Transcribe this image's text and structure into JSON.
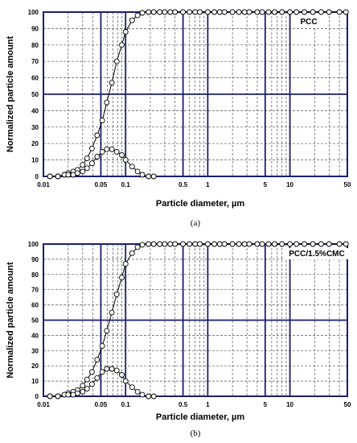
{
  "chart_data": [
    {
      "type": "line",
      "scale_x": "log",
      "xlim": [
        0.01,
        50
      ],
      "ylim": [
        0,
        100
      ],
      "x_ticks": [
        "0.01",
        "0.05",
        "0.1",
        "0.5",
        "1",
        "5",
        "10",
        "50"
      ],
      "y_ticks": [
        "0",
        "10",
        "20",
        "30",
        "40",
        "50",
        "60",
        "70",
        "80",
        "90",
        "100"
      ],
      "xlabel": "Particle diameter, µm",
      "ylabel": "Normalized particle amount",
      "sample_label": "PCC",
      "caption": "(a)",
      "grid": true,
      "series": [
        {
          "x": [
            0.012,
            0.015,
            0.018,
            0.02,
            0.023,
            0.026,
            0.03,
            0.034,
            0.039,
            0.045,
            0.052,
            0.059,
            0.068,
            0.078,
            0.09,
            0.1,
            0.12,
            0.14,
            0.16,
            0.19,
            0.22,
            0.26,
            0.3,
            0.35,
            0.4,
            0.5,
            0.6,
            0.7,
            0.8,
            1,
            1.2,
            1.4,
            1.6,
            2,
            2.4,
            2.8,
            3.2,
            4,
            4.6,
            5.5,
            6.5,
            8,
            10,
            12,
            15,
            19,
            24,
            30,
            40,
            48
          ],
          "y": [
            0,
            0,
            1,
            2,
            3,
            4,
            7,
            11,
            17,
            25,
            34,
            45,
            57,
            70,
            80,
            88,
            95,
            98,
            99.5,
            100,
            100,
            100,
            100,
            100,
            100,
            100,
            100,
            100,
            100,
            100,
            100,
            100,
            100,
            100,
            100,
            100,
            100,
            100,
            100,
            100,
            100,
            100,
            100,
            100,
            100,
            100,
            100,
            100,
            100,
            100
          ]
        },
        {
          "x": [
            0.012,
            0.015,
            0.018,
            0.02,
            0.023,
            0.026,
            0.03,
            0.034,
            0.039,
            0.045,
            0.052,
            0.059,
            0.068,
            0.078,
            0.09,
            0.1,
            0.12,
            0.14,
            0.16,
            0.19,
            0.22
          ],
          "y": [
            0,
            0,
            1,
            1,
            1,
            2,
            3,
            5,
            8,
            12,
            15,
            16.5,
            16.5,
            15,
            13,
            10,
            6,
            3,
            1,
            0,
            0
          ]
        }
      ]
    },
    {
      "type": "line",
      "scale_x": "log",
      "xlim": [
        0.01,
        50
      ],
      "ylim": [
        0,
        100
      ],
      "x_ticks": [
        "0.01",
        "0.05",
        "0.1",
        "0.5",
        "1",
        "5",
        "10",
        "50"
      ],
      "y_ticks": [
        "0",
        "10",
        "20",
        "30",
        "40",
        "50",
        "60",
        "70",
        "80",
        "90",
        "100"
      ],
      "xlabel": "Particle diameter, µm",
      "ylabel": "Normalized particle amount",
      "sample_label": "PCC/1.5%CMC",
      "caption": "(b)",
      "grid": true,
      "series": [
        {
          "x": [
            0.012,
            0.015,
            0.018,
            0.02,
            0.023,
            0.026,
            0.03,
            0.034,
            0.039,
            0.045,
            0.052,
            0.059,
            0.068,
            0.078,
            0.09,
            0.1,
            0.12,
            0.14,
            0.16,
            0.19,
            0.22,
            0.26,
            0.3,
            0.35,
            0.4,
            0.5,
            0.6,
            0.7,
            0.8,
            1,
            1.2,
            1.4,
            1.6,
            2,
            2.4,
            2.8,
            3.2,
            4,
            4.6,
            5.5,
            6.5,
            8,
            10,
            12,
            15,
            19,
            24,
            30,
            40,
            48
          ],
          "y": [
            0,
            0,
            1,
            2,
            3,
            4,
            7,
            11,
            16,
            24,
            33,
            43,
            55,
            67,
            78,
            87,
            94,
            98,
            99.5,
            100,
            100,
            100,
            100,
            100,
            100,
            100,
            100,
            100,
            100,
            100,
            100,
            100,
            100,
            100,
            100,
            100,
            100,
            100,
            100,
            100,
            100,
            100,
            100,
            100,
            100,
            100,
            100,
            100,
            100,
            100
          ]
        },
        {
          "x": [
            0.012,
            0.015,
            0.018,
            0.02,
            0.023,
            0.026,
            0.03,
            0.034,
            0.039,
            0.045,
            0.052,
            0.059,
            0.068,
            0.078,
            0.09,
            0.1,
            0.12,
            0.14,
            0.16,
            0.19,
            0.22
          ],
          "y": [
            0,
            0,
            1,
            1,
            1,
            2,
            3,
            5,
            8,
            12,
            16,
            18,
            18,
            17,
            14,
            10,
            6,
            3,
            1,
            0,
            0
          ]
        }
      ]
    }
  ]
}
